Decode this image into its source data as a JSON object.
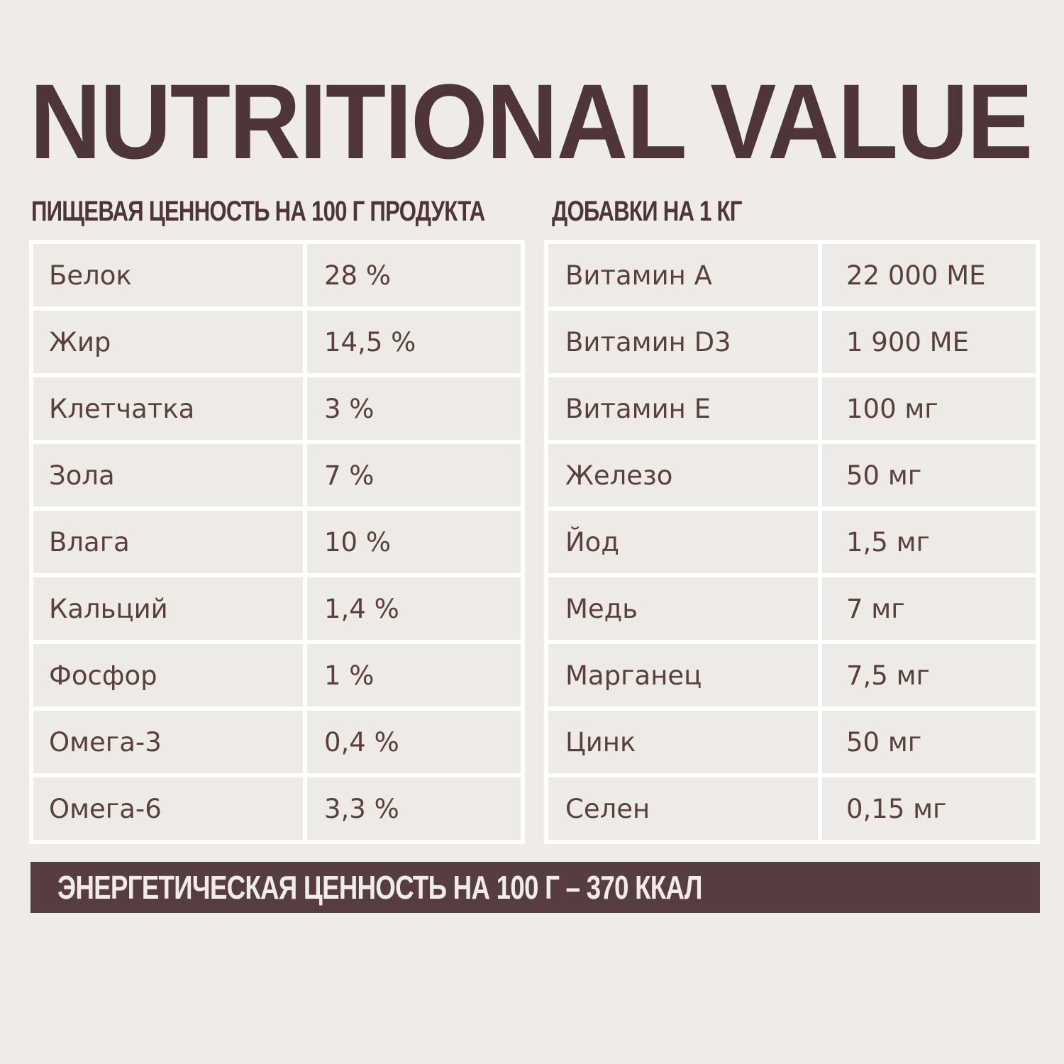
{
  "title": "NUTRITIONAL VALUE",
  "left_section": {
    "heading": "ПИЩЕВАЯ ЦЕННОСТЬ НА 100 Г ПРОДУКТА",
    "rows": [
      {
        "name": "Белок",
        "value": "28 %"
      },
      {
        "name": "Жир",
        "value": "14,5 %"
      },
      {
        "name": "Клетчатка",
        "value": "3 %"
      },
      {
        "name": "Зола",
        "value": "7 %"
      },
      {
        "name": "Влага",
        "value": "10 %"
      },
      {
        "name": "Кальций",
        "value": "1,4 %"
      },
      {
        "name": "Фосфор",
        "value": "1 %"
      },
      {
        "name": "Омега-3",
        "value": "0,4 %"
      },
      {
        "name": "Омега-6",
        "value": "3,3 %"
      }
    ]
  },
  "right_section": {
    "heading": "ДОБАВКИ НА 1 КГ",
    "rows": [
      {
        "name": "Витамин А",
        "value": "22 000 МЕ"
      },
      {
        "name": "Витамин D3",
        "value": "1 900 МЕ"
      },
      {
        "name": "Витамин Е",
        "value": "100 мг"
      },
      {
        "name": "Железо",
        "value": "50 мг"
      },
      {
        "name": "Йод",
        "value": "1,5 мг"
      },
      {
        "name": "Медь",
        "value": "7 мг"
      },
      {
        "name": "Марганец",
        "value": "7,5 мг"
      },
      {
        "name": "Цинк",
        "value": "50 мг"
      },
      {
        "name": "Селен",
        "value": "0,15 мг"
      }
    ]
  },
  "energy": "ЭНЕРГЕТИЧЕСКАЯ ЦЕННОСТЬ НА 100 Г – 370 ККАЛ",
  "colors": {
    "background": "#efebe6",
    "accent": "#563d41",
    "cell": "#eeebe7",
    "grid": "#ffffff"
  }
}
